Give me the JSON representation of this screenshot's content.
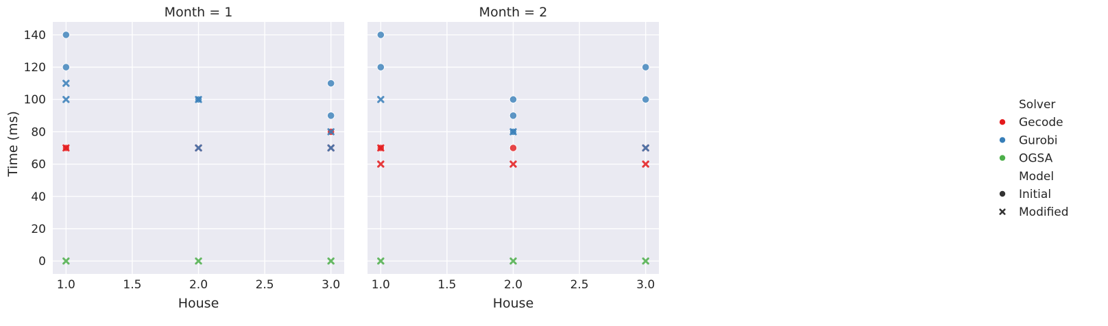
{
  "chart_data": {
    "type": "scatter",
    "ylabel": "Time (ms)",
    "xlabel": "House",
    "xlim": [
      0.9,
      3.1
    ],
    "ylim": [
      -8,
      148
    ],
    "xticks": [
      1.0,
      1.5,
      2.0,
      2.5,
      3.0
    ],
    "xtick_labels": [
      "1.0",
      "1.5",
      "2.0",
      "2.5",
      "3.0"
    ],
    "yticks": [
      0,
      20,
      40,
      60,
      80,
      100,
      120,
      140
    ],
    "ytick_labels": [
      "0",
      "20",
      "40",
      "60",
      "80",
      "100",
      "120",
      "140"
    ],
    "grid": true,
    "legend_position": "right",
    "legend": {
      "hue_title": "Solver",
      "hue": [
        {
          "label": "Gecode",
          "color": "#e41a1c"
        },
        {
          "label": "Gurobi",
          "color": "#377eb8"
        },
        {
          "label": "OGSA",
          "color": "#4daf4a"
        }
      ],
      "style_title": "Model",
      "style": [
        {
          "label": "Initial",
          "marker": "circle"
        },
        {
          "label": "Modified",
          "marker": "x"
        }
      ]
    },
    "panels": [
      {
        "title": "Month = 1",
        "points": [
          {
            "x": 1.0,
            "y": 140,
            "solver": "Gurobi",
            "model": "Initial"
          },
          {
            "x": 1.0,
            "y": 120,
            "solver": "Gurobi",
            "model": "Initial"
          },
          {
            "x": 1.0,
            "y": 110,
            "solver": "Gurobi",
            "model": "Modified"
          },
          {
            "x": 1.0,
            "y": 100,
            "solver": "Gurobi",
            "model": "Modified"
          },
          {
            "x": 1.0,
            "y": 70,
            "solver": "Gecode",
            "model": "Initial"
          },
          {
            "x": 1.0,
            "y": 70,
            "solver": "Gecode",
            "model": "Modified"
          },
          {
            "x": 1.0,
            "y": 0,
            "solver": "OGSA",
            "model": "Modified"
          },
          {
            "x": 2.0,
            "y": 100,
            "solver": "Gurobi",
            "model": "Initial"
          },
          {
            "x": 2.0,
            "y": 100,
            "solver": "Gurobi",
            "model": "Modified"
          },
          {
            "x": 2.0,
            "y": 70,
            "solver": "Gecode",
            "model": "Modified"
          },
          {
            "x": 2.0,
            "y": 70,
            "solver": "Gurobi",
            "model": "Modified"
          },
          {
            "x": 2.0,
            "y": 0,
            "solver": "OGSA",
            "model": "Modified"
          },
          {
            "x": 3.0,
            "y": 110,
            "solver": "Gurobi",
            "model": "Initial"
          },
          {
            "x": 3.0,
            "y": 90,
            "solver": "Gurobi",
            "model": "Initial"
          },
          {
            "x": 3.0,
            "y": 80,
            "solver": "Gecode",
            "model": "Initial"
          },
          {
            "x": 3.0,
            "y": 80,
            "solver": "Gurobi",
            "model": "Modified"
          },
          {
            "x": 3.0,
            "y": 70,
            "solver": "Gecode",
            "model": "Modified"
          },
          {
            "x": 3.0,
            "y": 70,
            "solver": "Gurobi",
            "model": "Modified"
          },
          {
            "x": 3.0,
            "y": 0,
            "solver": "OGSA",
            "model": "Modified"
          }
        ]
      },
      {
        "title": "Month = 2",
        "points": [
          {
            "x": 1.0,
            "y": 140,
            "solver": "Gurobi",
            "model": "Initial"
          },
          {
            "x": 1.0,
            "y": 120,
            "solver": "Gurobi",
            "model": "Initial"
          },
          {
            "x": 1.0,
            "y": 100,
            "solver": "Gurobi",
            "model": "Modified"
          },
          {
            "x": 1.0,
            "y": 70,
            "solver": "Gecode",
            "model": "Initial"
          },
          {
            "x": 1.0,
            "y": 70,
            "solver": "Gecode",
            "model": "Modified"
          },
          {
            "x": 1.0,
            "y": 60,
            "solver": "Gecode",
            "model": "Modified"
          },
          {
            "x": 1.0,
            "y": 0,
            "solver": "OGSA",
            "model": "Modified"
          },
          {
            "x": 2.0,
            "y": 100,
            "solver": "Gurobi",
            "model": "Initial"
          },
          {
            "x": 2.0,
            "y": 90,
            "solver": "Gurobi",
            "model": "Initial"
          },
          {
            "x": 2.0,
            "y": 80,
            "solver": "Gurobi",
            "model": "Initial"
          },
          {
            "x": 2.0,
            "y": 80,
            "solver": "Gurobi",
            "model": "Modified"
          },
          {
            "x": 2.0,
            "y": 70,
            "solver": "Gecode",
            "model": "Initial"
          },
          {
            "x": 2.0,
            "y": 60,
            "solver": "Gecode",
            "model": "Modified"
          },
          {
            "x": 2.0,
            "y": 0,
            "solver": "OGSA",
            "model": "Modified"
          },
          {
            "x": 3.0,
            "y": 120,
            "solver": "Gurobi",
            "model": "Initial"
          },
          {
            "x": 3.0,
            "y": 100,
            "solver": "Gurobi",
            "model": "Initial"
          },
          {
            "x": 3.0,
            "y": 70,
            "solver": "Gecode",
            "model": "Modified"
          },
          {
            "x": 3.0,
            "y": 70,
            "solver": "Gurobi",
            "model": "Modified"
          },
          {
            "x": 3.0,
            "y": 60,
            "solver": "Gecode",
            "model": "Modified"
          },
          {
            "x": 3.0,
            "y": 0,
            "solver": "OGSA",
            "model": "Modified"
          }
        ]
      }
    ]
  }
}
